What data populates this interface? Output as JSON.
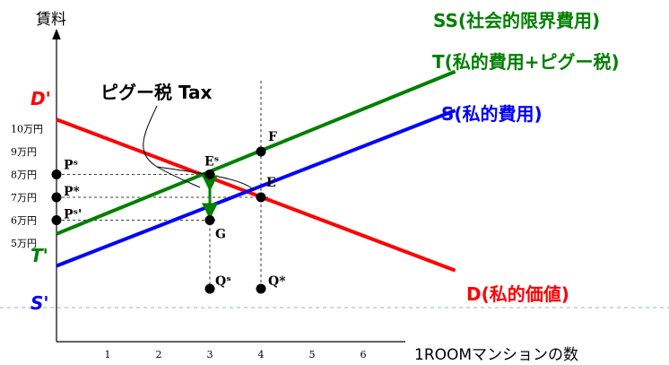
{
  "chart_data": {
    "type": "line",
    "xlabel": "1ROOMマンションの数",
    "ylabel": "賃料",
    "xlim": [
      0,
      7.5
    ],
    "ylim": [
      3,
      12
    ],
    "x_ticks": [
      {
        "value": 1,
        "label": "1"
      },
      {
        "value": 2,
        "label": "2"
      },
      {
        "value": 3,
        "label": "3"
      },
      {
        "value": 4,
        "label": "4"
      },
      {
        "value": 5,
        "label": "5"
      },
      {
        "value": 6,
        "label": "6"
      }
    ],
    "y_ticks": [
      {
        "value": 5,
        "label": "5万円"
      },
      {
        "value": 6,
        "label": "6万円"
      },
      {
        "value": 7,
        "label": "7万円"
      },
      {
        "value": 8,
        "label": "8万円"
      },
      {
        "value": 9,
        "label": "9万円"
      },
      {
        "value": 10,
        "label": "10万円"
      }
    ],
    "series": [
      {
        "key": "demand",
        "name": "D(私的価値)",
        "intercept_label": "D'",
        "color": "#ff0000",
        "x": [
          0,
          7.8
        ],
        "y": [
          10.4,
          3.8
        ]
      },
      {
        "key": "tax",
        "name": "T(私的費用+ピグー税)",
        "intercept_label": "T'",
        "color": "#008000",
        "x": [
          0,
          7.8
        ],
        "y": [
          5.4,
          12.5
        ]
      },
      {
        "key": "supply",
        "name": "S(私的費用)",
        "intercept_label": "S'",
        "color": "#0000ff",
        "x": [
          0,
          7.8
        ],
        "y": [
          4.0,
          10.8
        ]
      }
    ],
    "social_cost_label": "SS(社会的限界費用)",
    "points": [
      {
        "label": "F",
        "x": 4,
        "y": 9.0,
        "dot": true
      },
      {
        "label": "Eˢ",
        "x": 3,
        "y": 8.0,
        "dot": true
      },
      {
        "label": "E",
        "x": 4,
        "y": 7.0,
        "dot": true
      },
      {
        "label": "G",
        "x": 3,
        "y": 6.0,
        "dot": true
      },
      {
        "label": "Pˢ",
        "x": 0,
        "y": 8.0,
        "dot": true
      },
      {
        "label": "P*",
        "x": 0,
        "y": 7.0,
        "dot": true
      },
      {
        "label": "Pˢ'",
        "x": 0,
        "y": 6.0,
        "dot": true
      },
      {
        "label": "Qˢ",
        "x": 3,
        "y": 3.0,
        "dot": true
      },
      {
        "label": "Q*",
        "x": 4,
        "y": 3.0,
        "dot": true
      }
    ],
    "tax_annotation": "ピグー税 Tax",
    "grid": false,
    "legend": "none"
  }
}
